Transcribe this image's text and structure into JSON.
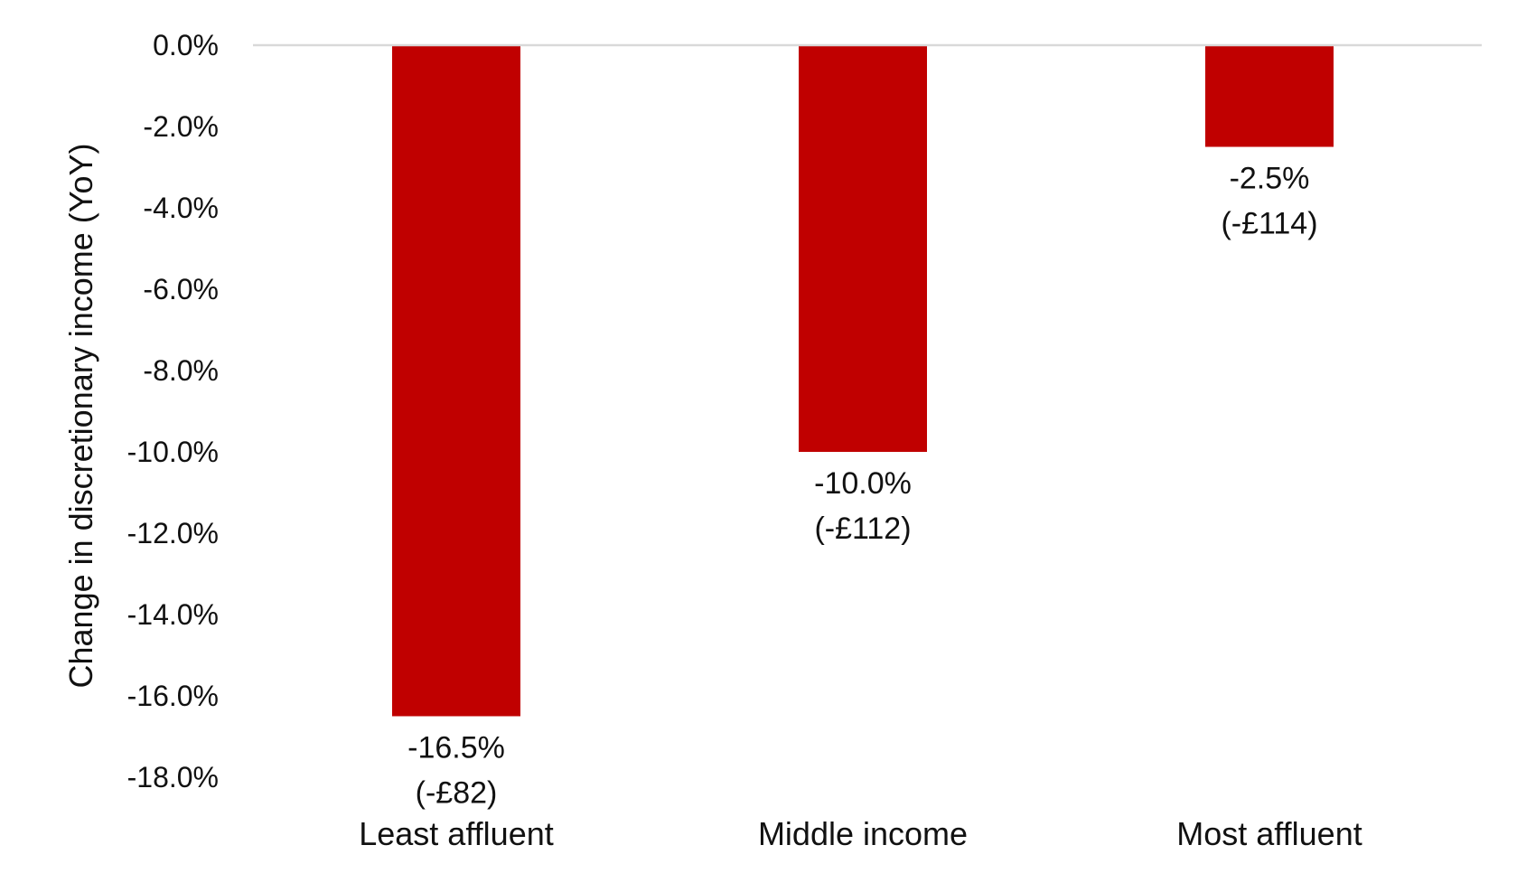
{
  "chart_data": {
    "type": "bar",
    "title": "",
    "xlabel": "",
    "ylabel": "Change in discretionary income (YoY)",
    "ylim": [
      -18.0,
      0.0
    ],
    "ytick_step": 2.0,
    "yticks": [
      "0.0%",
      "-2.0%",
      "-4.0%",
      "-6.0%",
      "-8.0%",
      "-10.0%",
      "-12.0%",
      "-14.0%",
      "-16.0%",
      "-18.0%"
    ],
    "grid": false,
    "legend": "none",
    "bar_color": "#c00000",
    "zero_line_color": "#d9d9d9",
    "categories": [
      "Least affluent",
      "Middle income",
      "Most affluent"
    ],
    "values": [
      -16.5,
      -10.0,
      -2.5
    ],
    "value_labels": [
      "-16.5%",
      "-10.0%",
      "-2.5%"
    ],
    "amount_labels": [
      "(-£82)",
      "(-£112)",
      "(-£114)"
    ]
  }
}
